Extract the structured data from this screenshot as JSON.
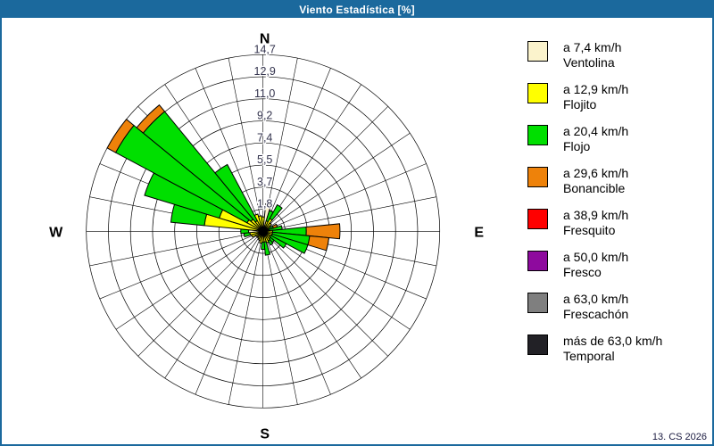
{
  "window": {
    "title": "Viento Estadística [%]"
  },
  "footer": {
    "note": "13. CS 2026"
  },
  "colors": {
    "titlebar": "#1B699D",
    "window_border": "#1B699D",
    "background": "#FFFFFF",
    "grid": "#000000",
    "tick_text": "#33334D",
    "cardinal_text": "#000000"
  },
  "chart_data": {
    "type": "wind_rose",
    "units": "%",
    "title": "Viento Estadística [%]",
    "sector_count": 32,
    "sector_width_deg": 11.25,
    "legend_position": "right",
    "grid": "on",
    "axis": {
      "max": 14.7,
      "rings": 8,
      "ring_labels": [
        "1,8",
        "3,7",
        "5,5",
        "7,4",
        "9,2",
        "11,0",
        "12,9",
        "14,7"
      ]
    },
    "cardinals": {
      "north": "N",
      "east": "E",
      "south": "S",
      "west": "W"
    },
    "speed_classes": [
      {
        "speed_label": "a 7,4 km/h",
        "name": "Ventolina",
        "color": "#FBF3CC"
      },
      {
        "speed_label": "a 12,9 km/h",
        "name": "Flojito",
        "color": "#FFFF00"
      },
      {
        "speed_label": "a 20,4 km/h",
        "name": "Flojo",
        "color": "#00DF00"
      },
      {
        "speed_label": "a 29,6 km/h",
        "name": "Bonancible",
        "color": "#EE820A"
      },
      {
        "speed_label": "a 38,9 km/h",
        "name": "Fresquito",
        "color": "#FF0000"
      },
      {
        "speed_label": "a 50,0 km/h",
        "name": "Fresco",
        "color": "#8E0A9E"
      },
      {
        "speed_label": "a 63,0 km/h",
        "name": "Frescachón",
        "color": "#7F7F7F"
      },
      {
        "speed_label": "más de 63,0 km/h",
        "name": "Temporal",
        "color": "#222126"
      }
    ],
    "directions": [
      {
        "name": "N",
        "bearing": 0,
        "values": [
          0.2,
          1.0,
          0,
          0,
          0,
          0,
          0,
          0
        ]
      },
      {
        "name": "NbE",
        "bearing": 11.25,
        "values": [
          2.3,
          0,
          0,
          0,
          0,
          0,
          0,
          0
        ]
      },
      {
        "name": "NNE",
        "bearing": 22.5,
        "values": [
          0.2,
          0.7,
          0.9,
          0,
          0,
          0,
          0,
          0
        ]
      },
      {
        "name": "NEbN",
        "bearing": 33.75,
        "values": [
          0.2,
          1.0,
          1.3,
          0,
          0,
          0,
          0,
          0
        ]
      },
      {
        "name": "NE",
        "bearing": 45,
        "values": [
          0.2,
          0.7,
          0,
          0,
          0,
          0,
          0,
          0
        ]
      },
      {
        "name": "NEbE",
        "bearing": 56.25,
        "values": [
          0.1,
          0.6,
          0,
          0,
          0,
          0,
          0,
          0
        ]
      },
      {
        "name": "ENE",
        "bearing": 67.5,
        "values": [
          0.1,
          0.4,
          0.4,
          0.35,
          0,
          0,
          0,
          0
        ]
      },
      {
        "name": "EbN",
        "bearing": 78.75,
        "values": [
          0.1,
          0.4,
          1.1,
          0,
          0,
          0,
          0,
          0
        ]
      },
      {
        "name": "E",
        "bearing": 90,
        "values": [
          0.2,
          0.6,
          2.8,
          2.8,
          0,
          0,
          0,
          0
        ]
      },
      {
        "name": "EbS",
        "bearing": 101.25,
        "values": [
          0.2,
          0.6,
          3.1,
          1.6,
          0,
          0,
          0,
          0
        ]
      },
      {
        "name": "ESE",
        "bearing": 112.5,
        "values": [
          0.2,
          0.6,
          3.1,
          0,
          0,
          0,
          0,
          0
        ]
      },
      {
        "name": "SEbE",
        "bearing": 123.75,
        "values": [
          0.1,
          0.6,
          1.5,
          0,
          0,
          0,
          0,
          0
        ]
      },
      {
        "name": "SE",
        "bearing": 135,
        "values": [
          0.1,
          0.7,
          0.4,
          0,
          0,
          0,
          0,
          0
        ]
      },
      {
        "name": "SEbS",
        "bearing": 146.25,
        "values": [
          0.1,
          0.8,
          0.4,
          0,
          0,
          0,
          0,
          0
        ]
      },
      {
        "name": "SSE",
        "bearing": 157.5,
        "values": [
          0.1,
          0.9,
          0,
          0,
          0,
          0,
          0,
          0
        ]
      },
      {
        "name": "SbE",
        "bearing": 168.75,
        "values": [
          0.1,
          0.8,
          1.1,
          0,
          0,
          0,
          0,
          0
        ]
      },
      {
        "name": "S",
        "bearing": 180,
        "values": [
          0.1,
          0.8,
          0.6,
          0,
          0,
          0,
          0,
          0
        ]
      },
      {
        "name": "SbW",
        "bearing": 191.25,
        "values": [
          0.1,
          0.9,
          0,
          0,
          0,
          0,
          0,
          0
        ]
      },
      {
        "name": "SSW",
        "bearing": 202.5,
        "values": [
          0.1,
          0.7,
          0,
          0,
          0,
          0,
          0,
          0
        ]
      },
      {
        "name": "SWbS",
        "bearing": 213.75,
        "values": [
          0.1,
          0.6,
          0,
          0,
          0,
          0,
          0,
          0
        ]
      },
      {
        "name": "SW",
        "bearing": 225,
        "values": [
          0.1,
          0.5,
          0,
          0,
          0,
          0,
          0,
          0
        ]
      },
      {
        "name": "SWbW",
        "bearing": 236.25,
        "values": [
          0.1,
          0.6,
          0,
          0,
          0,
          0,
          0,
          0
        ]
      },
      {
        "name": "WSW",
        "bearing": 247.5,
        "values": [
          0.1,
          0.9,
          0,
          0,
          0,
          0,
          0,
          0
        ]
      },
      {
        "name": "WbS",
        "bearing": 258.75,
        "values": [
          0.1,
          1.0,
          0.5,
          0,
          0,
          0,
          0,
          0
        ]
      },
      {
        "name": "W",
        "bearing": 270,
        "values": [
          1.2,
          0,
          0.65,
          0,
          0,
          0,
          0,
          0
        ]
      },
      {
        "name": "WbN",
        "bearing": 281.25,
        "values": [
          0.3,
          4.6,
          2.8,
          0,
          0,
          0,
          0,
          0
        ]
      },
      {
        "name": "WNW",
        "bearing": 292.5,
        "values": [
          0.3,
          3.5,
          6.5,
          0,
          0,
          0,
          0,
          0
        ]
      },
      {
        "name": "NWbW",
        "bearing": 303.75,
        "values": [
          0.3,
          1.2,
          12.4,
          0.8,
          0,
          0,
          0,
          0
        ]
      },
      {
        "name": "NW",
        "bearing": 315,
        "values": [
          0.3,
          1.0,
          11.6,
          0.7,
          0,
          0,
          0,
          0
        ]
      },
      {
        "name": "NWbN",
        "bearing": 326.25,
        "values": [
          0.3,
          0.7,
          5.3,
          0,
          0,
          0,
          0,
          0
        ]
      },
      {
        "name": "NNW",
        "bearing": 337.5,
        "values": [
          0.2,
          1.3,
          0,
          0,
          0,
          0,
          0,
          0
        ]
      },
      {
        "name": "NbW",
        "bearing": 348.75,
        "values": [
          0.2,
          1.1,
          0,
          0,
          0,
          0,
          0,
          0
        ]
      }
    ]
  }
}
